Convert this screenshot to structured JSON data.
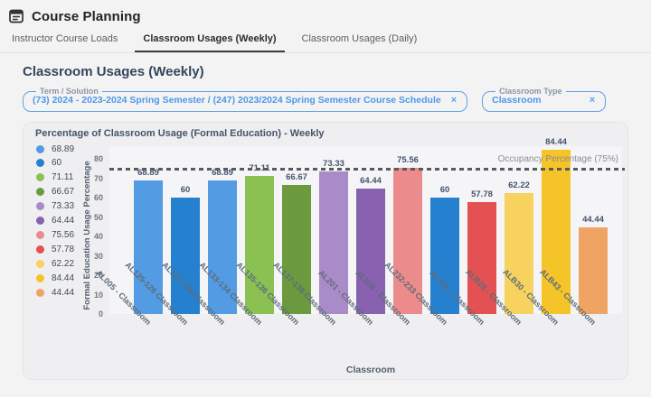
{
  "header": {
    "title": "Course Planning"
  },
  "tabs": [
    {
      "label": "Instructor Course Loads",
      "active": false
    },
    {
      "label": "Classroom Usages (Weekly)",
      "active": true
    },
    {
      "label": "Classroom Usages (Daily)",
      "active": false
    }
  ],
  "section_title": "Classroom Usages (Weekly)",
  "filters": [
    {
      "label": "Term / Solution",
      "value": "(73) 2024 - 2023-2024 Spring Semester / (247) 2023/2024 Spring Semester Course Schedule",
      "clear": "×"
    },
    {
      "label": "Classroom Type",
      "value": "Classroom",
      "clear": "×"
    }
  ],
  "chart_data": {
    "type": "bar",
    "title": "Percentage of Classroom Usage (Formal Education) - Weekly",
    "xlabel": "Classroom",
    "ylabel": "Formal Education Usage Percentage",
    "ylim": [
      0,
      80
    ],
    "yticks": [
      0,
      10,
      20,
      30,
      40,
      50,
      60,
      70,
      80
    ],
    "grid": false,
    "legend_position": "left",
    "categories": [
      "AL005 - Classroom",
      "AL125-126 Classroom",
      "AL127-128 Classroom",
      "AL133-134 Classroom",
      "AL135-136 Classroom",
      "AL137-138 Classroom",
      "AL201 - Classroom",
      "AL226 - Classroom",
      "AL232-233 Classroom",
      "AL325 - Classroom",
      "ALB28 - Classroom",
      "ALB30 - Classroom",
      "ALB43 - Classroom"
    ],
    "values": [
      68.89,
      60,
      68.89,
      71.11,
      66.67,
      73.33,
      64.44,
      75.56,
      60,
      57.78,
      62.22,
      84.44,
      44.44
    ],
    "value_labels": [
      "68.89",
      "60",
      "68.89",
      "71.11",
      "66.67",
      "73.33",
      "64.44",
      "75.56",
      "60",
      "57.78",
      "62.22",
      "84.44",
      "44.44"
    ],
    "bar_colors": [
      "#539BE2",
      "#2581D0",
      "#539BE2",
      "#8BC152",
      "#6C9A3F",
      "#A98BC8",
      "#8861B0",
      "#EC8B8B",
      "#2581D0",
      "#E45153",
      "#F7D25F",
      "#F4C428",
      "#EFA464"
    ],
    "legend": [
      {
        "label": "68.89",
        "color": "#539BE2"
      },
      {
        "label": "60",
        "color": "#2581D0"
      },
      {
        "label": "71.11",
        "color": "#8BC152"
      },
      {
        "label": "66.67",
        "color": "#6C9A3F"
      },
      {
        "label": "73.33",
        "color": "#A98BC8"
      },
      {
        "label": "64.44",
        "color": "#8861B0"
      },
      {
        "label": "75.56",
        "color": "#EC8B8B"
      },
      {
        "label": "57.78",
        "color": "#E45153"
      },
      {
        "label": "62.22",
        "color": "#F7D25F"
      },
      {
        "label": "84.44",
        "color": "#F4C428"
      },
      {
        "label": "44.44",
        "color": "#EFA464"
      }
    ],
    "threshold": {
      "value": 75,
      "label": "Occupancy Percentage (75%)"
    }
  },
  "colors": {
    "accent_blue": "#4D97E8",
    "title_navy": "#33475B",
    "threshold_line": "#58595B"
  }
}
